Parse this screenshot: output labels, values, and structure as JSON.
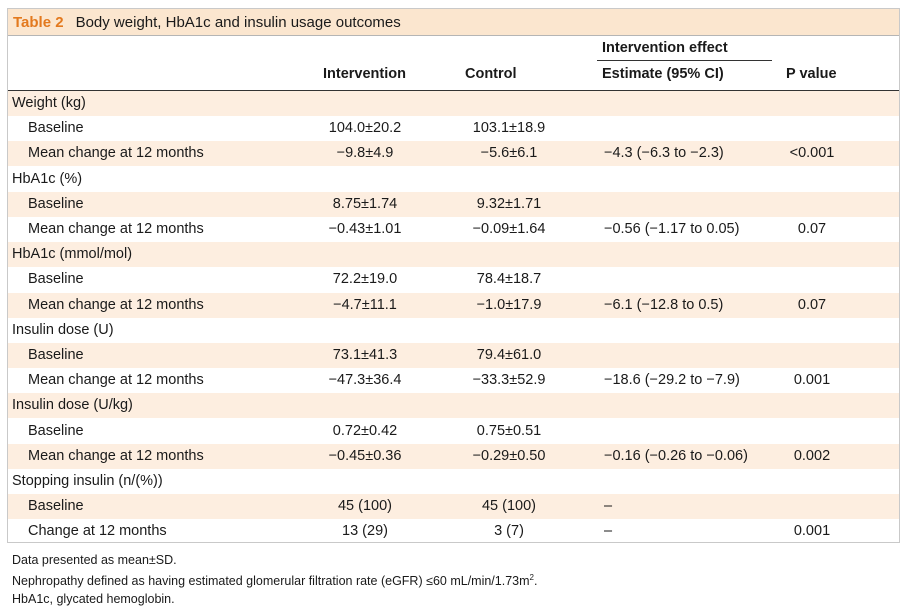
{
  "table": {
    "number": "Table 2",
    "title": "Body weight, HbA1c and insulin usage outcomes",
    "headers": {
      "group": "Intervention effect",
      "intervention": "Intervention",
      "control": "Control",
      "estimate": "Estimate (95% CI)",
      "pvalue": "P value"
    },
    "rows": [
      {
        "label": "Weight (kg)",
        "type": "section",
        "shade": true,
        "intervention": "",
        "control": "",
        "estimate": "",
        "p": ""
      },
      {
        "label": "Baseline",
        "type": "sub",
        "shade": false,
        "intervention": "104.0±20.2",
        "control": "103.1±18.9",
        "estimate": "",
        "p": ""
      },
      {
        "label": "Mean change at 12 months",
        "type": "sub",
        "shade": true,
        "intervention": "−9.8±4.9",
        "control": "−5.6±6.1",
        "estimate": "−4.3 (−6.3 to −2.3)",
        "p": "<0.001"
      },
      {
        "label": "HbA1c (%)",
        "type": "section",
        "shade": false,
        "intervention": "",
        "control": "",
        "estimate": "",
        "p": ""
      },
      {
        "label": "Baseline",
        "type": "sub",
        "shade": true,
        "intervention": "8.75±1.74",
        "control": "9.32±1.71",
        "estimate": "",
        "p": ""
      },
      {
        "label": "Mean change at 12 months",
        "type": "sub",
        "shade": false,
        "intervention": "−0.43±1.01",
        "control": "−0.09±1.64",
        "estimate": "−0.56 (−1.17 to 0.05)",
        "p": "0.07"
      },
      {
        "label": "HbA1c (mmol/mol)",
        "type": "section",
        "shade": true,
        "intervention": "",
        "control": "",
        "estimate": "",
        "p": ""
      },
      {
        "label": "Baseline",
        "type": "sub",
        "shade": false,
        "intervention": "72.2±19.0",
        "control": "78.4±18.7",
        "estimate": "",
        "p": ""
      },
      {
        "label": "Mean change at 12 months",
        "type": "sub",
        "shade": true,
        "intervention": "−4.7±11.1",
        "control": "−1.0±17.9",
        "estimate": "−6.1 (−12.8 to 0.5)",
        "p": "0.07"
      },
      {
        "label": "Insulin dose (U)",
        "type": "section",
        "shade": false,
        "intervention": "",
        "control": "",
        "estimate": "",
        "p": ""
      },
      {
        "label": "Baseline",
        "type": "sub",
        "shade": true,
        "intervention": "73.1±41.3",
        "control": "79.4±61.0",
        "estimate": "",
        "p": ""
      },
      {
        "label": "Mean change at 12 months",
        "type": "sub",
        "shade": false,
        "intervention": "−47.3±36.4",
        "control": "−33.3±52.9",
        "estimate": "−18.6 (−29.2 to −7.9)",
        "p": "0.001"
      },
      {
        "label": "Insulin dose (U/kg)",
        "type": "section",
        "shade": true,
        "intervention": "",
        "control": "",
        "estimate": "",
        "p": ""
      },
      {
        "label": "Baseline",
        "type": "sub",
        "shade": false,
        "intervention": "0.72±0.42",
        "control": "0.75±0.51",
        "estimate": "",
        "p": ""
      },
      {
        "label": "Mean change at 12 months",
        "type": "sub",
        "shade": true,
        "intervention": "−0.45±0.36",
        "control": "−0.29±0.50",
        "estimate": "−0.16 (−0.26 to −0.06)",
        "p": "0.002"
      },
      {
        "label": "Stopping insulin (n/(%))",
        "type": "section",
        "shade": false,
        "intervention": "",
        "control": "",
        "estimate": "",
        "p": ""
      },
      {
        "label": "Baseline",
        "type": "sub",
        "shade": true,
        "intervention": "45 (100)",
        "control": "45 (100)",
        "estimate": "–",
        "p": ""
      },
      {
        "label": "Change at 12 months",
        "type": "sub",
        "shade": false,
        "intervention": "13 (29)",
        "control": "3 (7)",
        "estimate": "–",
        "p": "0.001"
      }
    ]
  },
  "footnotes": {
    "line1": "Data presented as mean±SD.",
    "line2_text": "Nephropathy defined as having estimated glomerular filtration rate (eGFR) ≤60 mL/min/1.73m",
    "line2_sup": "2",
    "line2_end": ".",
    "line3": "HbA1c, glycated hemoglobin."
  },
  "colors": {
    "title_bar": "#fbe6cf",
    "table_number": "#e3791e",
    "shaded_row": "#fdeee0"
  }
}
